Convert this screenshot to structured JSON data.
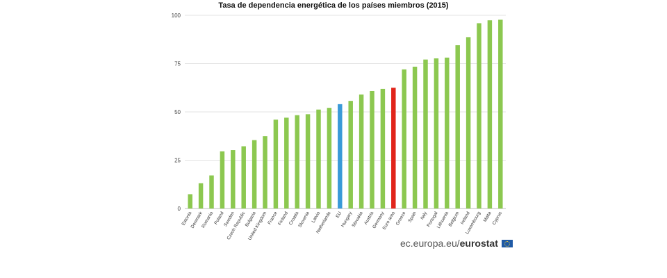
{
  "chart_data": {
    "type": "bar",
    "title": "Tasa de dependencia energética de los países miembros (2015)",
    "categories": [
      "Estonia",
      "Denmark",
      "Romania",
      "Poland",
      "Sweden",
      "Czech Republic",
      "Bulgaria",
      "United Kingdom",
      "France",
      "Finland",
      "Croatia",
      "Slovenia",
      "Latvia",
      "Netherlands",
      "EU",
      "Hungary",
      "Slovakia",
      "Austria",
      "Germany",
      "Euro area",
      "Greece",
      "Spain",
      "Italy",
      "Portugal",
      "Lithuania",
      "Belgium",
      "Ireland",
      "Luxembourg",
      "Malta",
      "Cyprus"
    ],
    "values": [
      7.4,
      13.1,
      17.1,
      29.6,
      30.2,
      32.2,
      35.4,
      37.4,
      46.0,
      47.0,
      48.3,
      48.8,
      51.2,
      52.1,
      54.0,
      55.7,
      59.0,
      60.8,
      61.9,
      62.5,
      72.0,
      73.4,
      77.1,
      77.7,
      78.1,
      84.5,
      88.7,
      95.9,
      97.4,
      97.7
    ],
    "highlight": {
      "EU": "#3a9ad8",
      "Euro area": "#e1251b"
    },
    "bar_color": "#8cc850",
    "ylim": [
      0,
      100
    ],
    "yticks": [
      "0",
      "25",
      "50",
      "75",
      "100"
    ],
    "grid": true,
    "xlabel": "",
    "ylabel": ""
  },
  "footer": {
    "domain_prefix": "ec.europa.eu/",
    "brand": "eurostat"
  },
  "icons": {
    "eu_flag": "eu-flag-icon"
  }
}
